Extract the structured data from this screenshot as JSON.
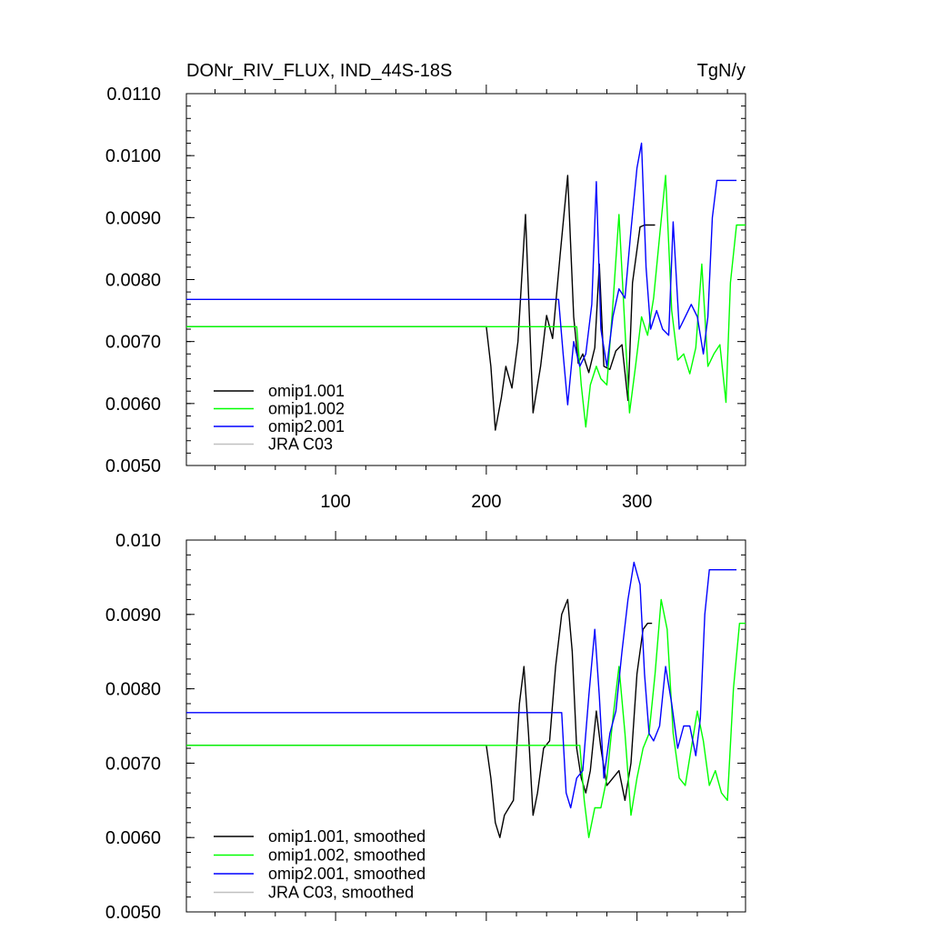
{
  "figure": {
    "title_left": "DONr_RIV_FLUX, IND_44S-18S",
    "title_right": "TgN/y"
  },
  "chart_data": [
    {
      "type": "line",
      "xlim": [
        1,
        372
      ],
      "ylim": [
        0.005,
        0.011
      ],
      "x_ticks": [
        {
          "v": 100,
          "label": "100"
        },
        {
          "v": 200,
          "label": "200"
        },
        {
          "v": 300,
          "label": "300"
        }
      ],
      "y_ticks": [
        {
          "v": 0.005,
          "label": "0.0050"
        },
        {
          "v": 0.006,
          "label": "0.0060"
        },
        {
          "v": 0.007,
          "label": "0.0070"
        },
        {
          "v": 0.008,
          "label": "0.0080"
        },
        {
          "v": 0.009,
          "label": "0.0090"
        },
        {
          "v": 0.01,
          "label": "0.0100"
        },
        {
          "v": 0.011,
          "label": "0.0110"
        }
      ],
      "legend_position": "bottom-left",
      "series": [
        {
          "name": "omip1.001",
          "color": "#000000",
          "x": [
            1,
            200,
            203,
            206,
            210,
            213,
            217,
            221,
            226,
            231,
            236,
            240,
            244,
            249,
            254,
            258,
            261,
            264,
            268,
            272,
            275,
            278,
            282,
            286,
            290,
            294,
            297,
            302,
            305,
            308,
            312
          ],
          "y": [
            0.00724,
            0.00724,
            0.0066,
            0.00557,
            0.0061,
            0.0066,
            0.00625,
            0.007,
            0.00905,
            0.00585,
            0.0066,
            0.00742,
            0.00705,
            0.0084,
            0.00968,
            0.0074,
            0.00665,
            0.0068,
            0.0065,
            0.0069,
            0.00825,
            0.0066,
            0.00655,
            0.00685,
            0.00695,
            0.00605,
            0.00795,
            0.00885,
            0.00888,
            0.00888,
            0.00888
          ]
        },
        {
          "name": "omip1.002",
          "color": "#00ff00",
          "x": [
            1,
            260,
            263,
            266,
            269,
            273,
            276,
            280,
            284,
            288,
            292,
            295,
            299,
            303,
            307,
            311,
            315,
            319,
            323,
            327,
            331,
            335,
            339,
            343,
            347,
            351,
            355,
            359,
            362,
            366,
            370,
            372
          ],
          "y": [
            0.00724,
            0.00724,
            0.0063,
            0.00562,
            0.0063,
            0.0066,
            0.0064,
            0.0063,
            0.0076,
            0.00905,
            0.0072,
            0.00585,
            0.0066,
            0.0074,
            0.0071,
            0.0077,
            0.0087,
            0.00968,
            0.0075,
            0.0067,
            0.0068,
            0.00648,
            0.0069,
            0.00825,
            0.0066,
            0.0068,
            0.00695,
            0.00602,
            0.00795,
            0.00888,
            0.00888,
            0.00888
          ]
        },
        {
          "name": "omip2.001",
          "color": "#0000ff",
          "x": [
            1,
            248,
            251,
            254,
            258,
            262,
            266,
            270,
            273,
            276,
            280,
            284,
            288,
            292,
            296,
            300,
            303,
            306,
            309,
            313,
            317,
            321,
            324,
            328,
            332,
            336,
            340,
            344,
            347,
            350,
            353,
            356,
            360,
            366
          ],
          "y": [
            0.00768,
            0.00768,
            0.0068,
            0.00598,
            0.007,
            0.0066,
            0.0068,
            0.0076,
            0.00958,
            0.0072,
            0.0066,
            0.0074,
            0.00785,
            0.0077,
            0.0088,
            0.0098,
            0.0102,
            0.0082,
            0.0072,
            0.0075,
            0.0072,
            0.0071,
            0.00893,
            0.0072,
            0.0074,
            0.0076,
            0.0074,
            0.0068,
            0.0074,
            0.009,
            0.0096,
            0.0096,
            0.0096,
            0.0096
          ]
        },
        {
          "name": "JRA C03",
          "color": "#c0c0c0",
          "x": [],
          "y": []
        }
      ]
    },
    {
      "type": "line",
      "xlim": [
        1,
        372
      ],
      "ylim": [
        0.005,
        0.01
      ],
      "x_ticks": [
        {
          "v": 100,
          "label": ""
        },
        {
          "v": 200,
          "label": ""
        },
        {
          "v": 300,
          "label": ""
        }
      ],
      "y_ticks": [
        {
          "v": 0.005,
          "label": "0.0050"
        },
        {
          "v": 0.006,
          "label": "0.0060"
        },
        {
          "v": 0.007,
          "label": "0.0070"
        },
        {
          "v": 0.008,
          "label": "0.0080"
        },
        {
          "v": 0.009,
          "label": "0.0090"
        },
        {
          "v": 0.01,
          "label": "0.010"
        }
      ],
      "legend_position": "bottom-left",
      "series": [
        {
          "name": "omip1.001, smoothed",
          "color": "#000000",
          "x": [
            1,
            200,
            203,
            206,
            209,
            212,
            215,
            218,
            222,
            225,
            228,
            231,
            234,
            238,
            242,
            246,
            250,
            254,
            257,
            260,
            263,
            266,
            269,
            273,
            276,
            280,
            284,
            288,
            292,
            296,
            300,
            304,
            307,
            310
          ],
          "y": [
            0.00724,
            0.00724,
            0.0068,
            0.0062,
            0.006,
            0.0063,
            0.0064,
            0.0065,
            0.0078,
            0.0083,
            0.0074,
            0.0063,
            0.0066,
            0.0072,
            0.0073,
            0.0083,
            0.009,
            0.0092,
            0.0085,
            0.0072,
            0.0068,
            0.0066,
            0.0069,
            0.0077,
            0.0072,
            0.0067,
            0.0068,
            0.0069,
            0.0065,
            0.007,
            0.0082,
            0.0088,
            0.00888,
            0.00888
          ]
        },
        {
          "name": "omip1.002, smoothed",
          "color": "#00ff00",
          "x": [
            1,
            262,
            265,
            268,
            272,
            276,
            280,
            284,
            288,
            292,
            296,
            300,
            304,
            308,
            312,
            316,
            320,
            324,
            328,
            332,
            336,
            340,
            344,
            348,
            352,
            356,
            360,
            364,
            368,
            372
          ],
          "y": [
            0.00724,
            0.00724,
            0.0065,
            0.006,
            0.0064,
            0.0064,
            0.0068,
            0.0076,
            0.0083,
            0.0074,
            0.0063,
            0.0068,
            0.0072,
            0.0074,
            0.0082,
            0.0092,
            0.0088,
            0.0074,
            0.0068,
            0.0067,
            0.0072,
            0.0077,
            0.0073,
            0.0067,
            0.0069,
            0.0066,
            0.0065,
            0.008,
            0.00888,
            0.00888
          ]
        },
        {
          "name": "omip2.001, smoothed",
          "color": "#0000ff",
          "x": [
            1,
            250,
            253,
            256,
            260,
            264,
            268,
            272,
            275,
            278,
            282,
            286,
            290,
            294,
            298,
            302,
            305,
            308,
            311,
            315,
            319,
            323,
            327,
            331,
            335,
            339,
            342,
            345,
            348,
            351,
            354,
            357,
            362,
            366
          ],
          "y": [
            0.00768,
            0.00768,
            0.0066,
            0.0064,
            0.0068,
            0.0069,
            0.0079,
            0.0088,
            0.0079,
            0.0068,
            0.0074,
            0.0077,
            0.0085,
            0.0092,
            0.0097,
            0.0094,
            0.0082,
            0.0074,
            0.0073,
            0.0075,
            0.0083,
            0.0078,
            0.0072,
            0.0075,
            0.0075,
            0.0071,
            0.0076,
            0.009,
            0.0096,
            0.0096,
            0.0096,
            0.0096,
            0.0096,
            0.0096
          ]
        },
        {
          "name": "JRA C03, smoothed",
          "color": "#c0c0c0",
          "x": [],
          "y": []
        }
      ]
    }
  ]
}
